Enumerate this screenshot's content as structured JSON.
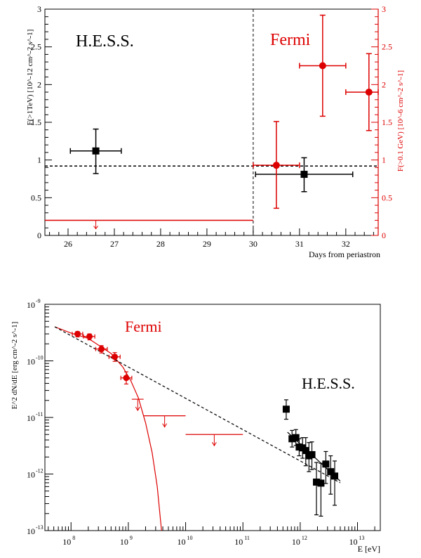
{
  "chart_data": [
    {
      "type": "scatter",
      "title": "",
      "xlabel": "Days from periastron",
      "ylabel_left": "F(>1TeV) [10^-12 cm^-2 s^-1]",
      "ylabel_right": "F(>0.1 GeV) [10^-6 cm^-2 s^-1]",
      "xlim": [
        25.5,
        32.7
      ],
      "ylim_left": [
        0,
        3
      ],
      "ylim_right": [
        0,
        3
      ],
      "x_ticks": [
        "26",
        "27",
        "28",
        "29",
        "30",
        "31",
        "32"
      ],
      "y_ticks": [
        "0",
        "0.5",
        "1",
        "1.5",
        "2",
        "2.5",
        "3"
      ],
      "annotations": [
        {
          "text": "H.E.S.S.",
          "color": "#000000"
        },
        {
          "text": "Fermi",
          "color": "#dd0000"
        }
      ],
      "vertical_line_x": 30.0,
      "series": [
        {
          "name": "H.E.S.S.",
          "color": "#000000",
          "axis": "left",
          "marker": "square",
          "points": [
            {
              "x": 26.6,
              "xlo": 26.05,
              "xhi": 27.15,
              "y": 1.12,
              "ylo": 0.82,
              "yhi": 1.41
            },
            {
              "x": 31.1,
              "xlo": 30.05,
              "xhi": 32.15,
              "y": 0.81,
              "ylo": 0.58,
              "yhi": 1.03
            }
          ]
        },
        {
          "name": "Fermi",
          "color": "#dd0000",
          "axis": "right",
          "marker": "circle",
          "points": [
            {
              "x": 30.5,
              "xlo": 30.0,
              "xhi": 31.0,
              "y": 0.93,
              "ylo": 0.36,
              "yhi": 1.51
            },
            {
              "x": 31.5,
              "xlo": 31.0,
              "xhi": 32.0,
              "y": 2.25,
              "ylo": 1.58,
              "yhi": 2.92
            },
            {
              "x": 32.5,
              "xlo": 32.0,
              "xhi": 32.7,
              "y": 1.9,
              "ylo": 1.39,
              "yhi": 2.41
            }
          ]
        }
      ],
      "reference_lines": [
        {
          "name": "H.E.S.S. average flux",
          "style": "dashed",
          "color": "#000000",
          "axis": "left",
          "y": 0.92
        }
      ],
      "upper_limits": [
        {
          "name": "Fermi upper limit",
          "color": "#dd0000",
          "axis": "right",
          "xlo": 25.5,
          "xhi": 30.0,
          "y": 0.2,
          "arrow_x": 26.6
        }
      ]
    },
    {
      "type": "scatter",
      "title": "",
      "xlabel": "E [eV]",
      "ylabel": "E^2 dN/dE [erg cm^-2 s^-1]",
      "xscale": "log",
      "yscale": "log",
      "xlim": [
        35000000.0,
        25000000000000.0
      ],
      "ylim": [
        1e-13,
        1e-09
      ],
      "x_ticks": [
        {
          "value": 100000000.0,
          "base": "10",
          "exp": "8"
        },
        {
          "value": 1000000000.0,
          "base": "10",
          "exp": "9"
        },
        {
          "value": 10000000000.0,
          "base": "10",
          "exp": "10"
        },
        {
          "value": 100000000000.0,
          "base": "10",
          "exp": "11"
        },
        {
          "value": 1000000000000.0,
          "base": "10",
          "exp": "12"
        },
        {
          "value": 10000000000000.0,
          "base": "10",
          "exp": "13"
        }
      ],
      "y_ticks": [
        {
          "value": 1e-09,
          "base": "10",
          "exp": "-9"
        },
        {
          "value": 1e-10,
          "base": "10",
          "exp": "-10"
        },
        {
          "value": 1e-11,
          "base": "10",
          "exp": "-11"
        },
        {
          "value": 1e-12,
          "base": "10",
          "exp": "-12"
        },
        {
          "value": 1e-13,
          "base": "10",
          "exp": "-13"
        }
      ],
      "annotations": [
        {
          "text": "Fermi",
          "color": "#dd0000"
        },
        {
          "text": "H.E.S.S.",
          "color": "#000000"
        }
      ],
      "series": [
        {
          "name": "Fermi",
          "color": "#dd0000",
          "marker": "circle",
          "points": [
            {
              "x": 130000000.0,
              "xlo": 105000000.0,
              "xhi": 160000000.0,
              "y": 3e-10,
              "ylo": 2.65e-10,
              "yhi": 3.3e-10
            },
            {
              "x": 210000000.0,
              "xlo": 165000000.0,
              "xhi": 260000000.0,
              "y": 2.7e-10,
              "ylo": 2.35e-10,
              "yhi": 3e-10
            },
            {
              "x": 340000000.0,
              "xlo": 270000000.0,
              "xhi": 430000000.0,
              "y": 1.62e-10,
              "ylo": 1.38e-10,
              "yhi": 1.86e-10
            },
            {
              "x": 580000000.0,
              "xlo": 460000000.0,
              "xhi": 720000000.0,
              "y": 1.18e-10,
              "ylo": 9.8e-11,
              "yhi": 1.4e-10
            },
            {
              "x": 920000000.0,
              "xlo": 740000000.0,
              "xhi": 1150000000.0,
              "y": 5e-11,
              "ylo": 3.9e-11,
              "yhi": 6.4e-11
            }
          ]
        },
        {
          "name": "H.E.S.S.",
          "color": "#000000",
          "marker": "square",
          "points": [
            {
              "x": 570000000000.0,
              "y": 1.4e-11,
              "ylo": 9.3e-12,
              "yhi": 2.05e-11
            },
            {
              "x": 720000000000.0,
              "y": 4.2e-12,
              "ylo": 3e-12,
              "yhi": 5.9e-12
            },
            {
              "x": 840000000000.0,
              "y": 4.4e-12,
              "ylo": 3.2e-12,
              "yhi": 6.1e-12
            },
            {
              "x": 960000000000.0,
              "y": 3e-12,
              "ylo": 2.1e-12,
              "yhi": 4.2e-12
            },
            {
              "x": 1100000000000.0,
              "y": 2.9e-12,
              "ylo": 1.9e-12,
              "yhi": 4.4e-12
            },
            {
              "x": 1250000000000.0,
              "y": 2.6e-12,
              "ylo": 1.4e-12,
              "yhi": 4.4e-12
            },
            {
              "x": 1420000000000.0,
              "y": 2.1e-12,
              "ylo": 1.1e-12,
              "yhi": 3.6e-12
            },
            {
              "x": 1600000000000.0,
              "y": 2.2e-12,
              "ylo": 1.2e-12,
              "yhi": 3.7e-12
            },
            {
              "x": 1920000000000.0,
              "y": 7.2e-13,
              "ylo": 1.9e-13,
              "yhi": 1.6e-12
            },
            {
              "x": 2300000000000.0,
              "y": 6.9e-13,
              "ylo": 1.8e-13,
              "yhi": 1.55e-12
            },
            {
              "x": 2800000000000.0,
              "y": 1.5e-12,
              "ylo": 6.8e-13,
              "yhi": 2.5e-12
            },
            {
              "x": 3400000000000.0,
              "y": 1.1e-12,
              "ylo": 4.4e-13,
              "yhi": 2.1e-12
            },
            {
              "x": 4000000000000.0,
              "y": 9.2e-13,
              "ylo": 2.8e-13,
              "yhi": 1.7e-12
            }
          ]
        }
      ],
      "upper_limits": [
        {
          "name": "Fermi UL 1",
          "color": "#dd0000",
          "xlo": 1150000000.0,
          "xhi": 1850000000.0,
          "y": 2.1e-11
        },
        {
          "name": "Fermi UL 2",
          "color": "#dd0000",
          "xlo": 1850000000.0,
          "xhi": 10000000000.0,
          "y": 1.07e-11
        },
        {
          "name": "Fermi UL 3",
          "color": "#dd0000",
          "xlo": 10000000000.0,
          "xhi": 100000000000.0,
          "y": 5e-12
        }
      ],
      "lines": [
        {
          "name": "Fermi spectral fit (power law with exponential cutoff)",
          "color": "#dd0000",
          "style": "solid",
          "points": [
            [
              52000000.0,
              4e-10
            ],
            [
              100000000.0,
              3.1e-10
            ],
            [
              200000000.0,
              2.5e-10
            ],
            [
              500000000.0,
              1.35e-10
            ],
            [
              800000000.0,
              7.8e-11
            ],
            [
              1100000000.0,
              4.5e-11
            ],
            [
              1500000000.0,
              2.2e-11
            ],
            [
              2000000000.0,
              8e-12
            ],
            [
              2600000000.0,
              2.4e-12
            ],
            [
              3200000000.0,
              6e-13
            ],
            [
              3800000000.0,
              1e-13
            ]
          ]
        },
        {
          "name": "extrapolated power law",
          "color": "#000000",
          "style": "dashed",
          "points": [
            [
              52000000.0,
              4e-10
            ],
            [
              5000000000000.0,
              7e-13
            ]
          ]
        },
        {
          "name": "H.E.S.S. power-law fit",
          "color": "#000000",
          "style": "solid",
          "points": [
            [
              600000000000.0,
              5.5e-12
            ],
            [
              5000000000000.0,
              7.5e-13
            ]
          ]
        }
      ]
    }
  ]
}
